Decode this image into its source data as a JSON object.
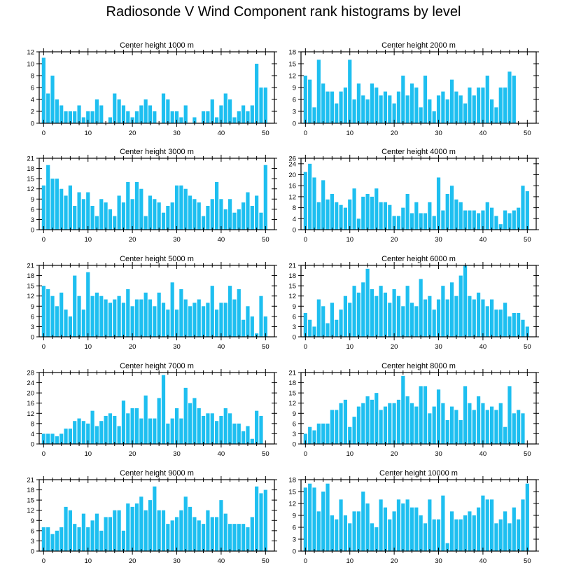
{
  "title": "Radiosonde V Wind Component rank histograms by level",
  "colors": {
    "bar": "#1ebff0",
    "axis": "#000000"
  },
  "chart_data": [
    {
      "type": "bar",
      "title": "Center height 1000 m",
      "xlabel": "",
      "ylabel": "",
      "xlim": [
        -1,
        52
      ],
      "ylim": [
        0,
        12
      ],
      "yticks": [
        0,
        2,
        4,
        6,
        8,
        10,
        12
      ],
      "xticks": [
        0,
        10,
        20,
        30,
        40,
        50
      ],
      "values": [
        11,
        5,
        8,
        4,
        3,
        2,
        2,
        2,
        3,
        1,
        2,
        2,
        4,
        3,
        0,
        1,
        5,
        4,
        3,
        2,
        1,
        2,
        3,
        4,
        3,
        2,
        0,
        5,
        4,
        2,
        2,
        1,
        3,
        0,
        1,
        0,
        2,
        2,
        4,
        1,
        3,
        5,
        4,
        1,
        2,
        3,
        2,
        3,
        10,
        6,
        6
      ]
    },
    {
      "type": "bar",
      "title": "Center height 2000 m",
      "xlabel": "",
      "ylabel": "",
      "xlim": [
        -1,
        52
      ],
      "ylim": [
        0,
        18
      ],
      "yticks": [
        0,
        3,
        6,
        9,
        12,
        15,
        18
      ],
      "xticks": [
        0,
        10,
        20,
        30,
        40,
        50
      ],
      "values": [
        12,
        11,
        4,
        16,
        10,
        8,
        8,
        5,
        8,
        9,
        16,
        6,
        10,
        7,
        6,
        10,
        9,
        7,
        8,
        7,
        5,
        8,
        12,
        7,
        10,
        9,
        4,
        12,
        6,
        3,
        7,
        8,
        6,
        11,
        8,
        7,
        5,
        9,
        7,
        9,
        9,
        12,
        6,
        4,
        9,
        9,
        13,
        12
      ]
    },
    {
      "type": "bar",
      "title": "Center height 3000 m",
      "xlabel": "",
      "ylabel": "",
      "xlim": [
        -1,
        52
      ],
      "ylim": [
        0,
        21
      ],
      "yticks": [
        0,
        3,
        6,
        9,
        12,
        15,
        18,
        21
      ],
      "xticks": [
        0,
        10,
        20,
        30,
        40,
        50
      ],
      "values": [
        13,
        19,
        15,
        15,
        12,
        10,
        13,
        7,
        11,
        9,
        11,
        7,
        4,
        9,
        8,
        6,
        4,
        10,
        8,
        14,
        9,
        14,
        12,
        4,
        10,
        9,
        8,
        5,
        7,
        8,
        13,
        13,
        12,
        10,
        9,
        8,
        4,
        7,
        9,
        14,
        9,
        6,
        9,
        5,
        6,
        8,
        11,
        7,
        10,
        5,
        19
      ]
    },
    {
      "type": "bar",
      "title": "Center height 4000 m",
      "xlabel": "",
      "ylabel": "",
      "xlim": [
        -1,
        52
      ],
      "ylim": [
        0,
        26
      ],
      "yticks": [
        0,
        4,
        8,
        12,
        16,
        20,
        24,
        26
      ],
      "xticks": [
        0,
        10,
        20,
        30,
        40,
        50
      ],
      "values": [
        21,
        24,
        19,
        10,
        18,
        11,
        13,
        10,
        9,
        8,
        11,
        15,
        4,
        12,
        13,
        12,
        15,
        10,
        10,
        9,
        5,
        5,
        8,
        13,
        6,
        10,
        6,
        6,
        10,
        5,
        19,
        7,
        13,
        16,
        11,
        10,
        7,
        7,
        7,
        6,
        7,
        10,
        8,
        5,
        2,
        7,
        6,
        7,
        8,
        16,
        14
      ]
    },
    {
      "type": "bar",
      "title": "Center height 5000 m",
      "xlabel": "",
      "ylabel": "",
      "xlim": [
        -1,
        52
      ],
      "ylim": [
        0,
        21
      ],
      "yticks": [
        0,
        3,
        6,
        9,
        12,
        15,
        18,
        21
      ],
      "xticks": [
        0,
        10,
        20,
        30,
        40,
        50
      ],
      "values": [
        15,
        14,
        12,
        9,
        13,
        8,
        6,
        18,
        12,
        8,
        19,
        12,
        13,
        12,
        11,
        10,
        11,
        12,
        10,
        14,
        9,
        11,
        11,
        13,
        11,
        9,
        13,
        10,
        8,
        16,
        8,
        14,
        11,
        9,
        10,
        11,
        9,
        10,
        15,
        8,
        10,
        10,
        15,
        11,
        14,
        5,
        9,
        6,
        1,
        12,
        6
      ]
    },
    {
      "type": "bar",
      "title": "Center height 6000 m",
      "xlabel": "",
      "ylabel": "",
      "xlim": [
        -1,
        52
      ],
      "ylim": [
        0,
        21
      ],
      "yticks": [
        0,
        3,
        6,
        9,
        12,
        15,
        18,
        21
      ],
      "xticks": [
        0,
        10,
        20,
        30,
        40,
        50
      ],
      "values": [
        7,
        5,
        3,
        11,
        9,
        4,
        10,
        5,
        8,
        12,
        10,
        15,
        13,
        16,
        20,
        14,
        12,
        15,
        13,
        10,
        14,
        12,
        9,
        15,
        10,
        9,
        17,
        11,
        12,
        8,
        11,
        15,
        11,
        16,
        12,
        18,
        21,
        12,
        11,
        13,
        11,
        9,
        11,
        8,
        8,
        10,
        6,
        7,
        7,
        5,
        3
      ]
    },
    {
      "type": "bar",
      "title": "Center height 7000 m",
      "xlabel": "",
      "ylabel": "",
      "xlim": [
        -1,
        52
      ],
      "ylim": [
        0,
        28
      ],
      "yticks": [
        0,
        4,
        8,
        12,
        16,
        20,
        24,
        28
      ],
      "xticks": [
        0,
        10,
        20,
        30,
        40,
        50
      ],
      "values": [
        4,
        4,
        4,
        3,
        4,
        6,
        6,
        9,
        10,
        9,
        8,
        13,
        7,
        9,
        11,
        12,
        11,
        7,
        17,
        12,
        14,
        14,
        10,
        19,
        10,
        10,
        18,
        27,
        8,
        10,
        14,
        10,
        22,
        16,
        18,
        14,
        11,
        12,
        12,
        9,
        11,
        14,
        12,
        8,
        8,
        5,
        7,
        2,
        13,
        11
      ]
    },
    {
      "type": "bar",
      "title": "Center height 8000 m",
      "xlabel": "",
      "ylabel": "",
      "xlim": [
        -1,
        52
      ],
      "ylim": [
        0,
        21
      ],
      "yticks": [
        0,
        3,
        6,
        9,
        12,
        15,
        18,
        21
      ],
      "xticks": [
        0,
        10,
        20,
        30,
        40,
        50
      ],
      "values": [
        3,
        5,
        4,
        6,
        6,
        6,
        10,
        10,
        12,
        13,
        5,
        8,
        11,
        12,
        14,
        13,
        15,
        10,
        11,
        12,
        12,
        13,
        20,
        14,
        12,
        11,
        17,
        17,
        9,
        11,
        16,
        12,
        7,
        11,
        10,
        7,
        17,
        12,
        10,
        14,
        12,
        10,
        11,
        10,
        12,
        5,
        17,
        9,
        10,
        9
      ]
    },
    {
      "type": "bar",
      "title": "Center height 9000 m",
      "xlabel": "",
      "ylabel": "",
      "xlim": [
        -1,
        52
      ],
      "ylim": [
        0,
        21
      ],
      "yticks": [
        0,
        3,
        6,
        9,
        12,
        15,
        18,
        21
      ],
      "xticks": [
        0,
        10,
        20,
        30,
        40,
        50
      ],
      "values": [
        7,
        7,
        5,
        6,
        7,
        13,
        12,
        8,
        7,
        11,
        7,
        9,
        11,
        6,
        10,
        10,
        12,
        12,
        6,
        14,
        13,
        14,
        16,
        12,
        15,
        19,
        12,
        12,
        8,
        9,
        10,
        12,
        16,
        13,
        10,
        9,
        8,
        12,
        10,
        10,
        15,
        11,
        8,
        8,
        8,
        8,
        7,
        10,
        19,
        17,
        18
      ]
    },
    {
      "type": "bar",
      "title": "Center height 10000 m",
      "xlabel": "",
      "ylabel": "",
      "xlim": [
        -1,
        52
      ],
      "ylim": [
        0,
        18
      ],
      "yticks": [
        0,
        3,
        6,
        9,
        12,
        15,
        18
      ],
      "xticks": [
        0,
        10,
        20,
        30,
        40,
        50
      ],
      "values": [
        16,
        17,
        16,
        10,
        15,
        17,
        9,
        8,
        13,
        9,
        7,
        10,
        10,
        15,
        12,
        7,
        6,
        13,
        11,
        8,
        10,
        13,
        12,
        13,
        11,
        11,
        9,
        7,
        13,
        8,
        8,
        14,
        2,
        10,
        8,
        8,
        9,
        10,
        9,
        11,
        14,
        13,
        13,
        7,
        8,
        10,
        7,
        11,
        8,
        13,
        17
      ]
    }
  ]
}
